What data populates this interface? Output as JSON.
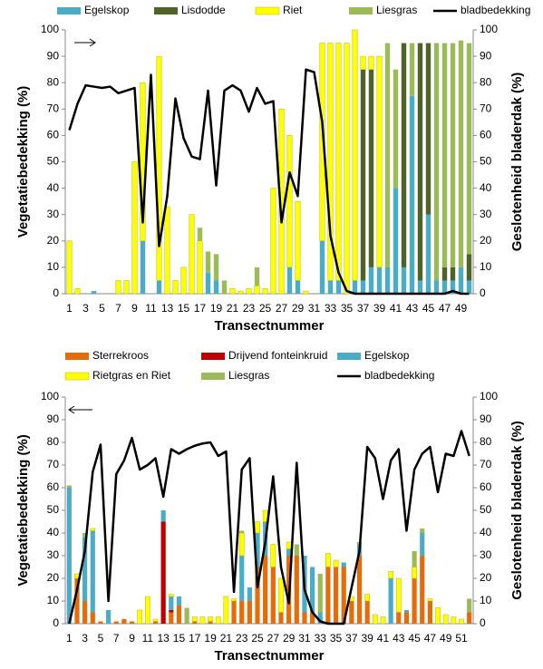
{
  "chart_data": [
    {
      "type": "bar",
      "stacked": true,
      "y_label": "Vegetatiebedekking  (%)",
      "y2_label": "Geslotenheid bladerdak (%)",
      "x_label": "Transectnummer",
      "categories": [
        1,
        null,
        3,
        null,
        5,
        null,
        7,
        null,
        9,
        null,
        11,
        null,
        13,
        null,
        15,
        null,
        17,
        null,
        19,
        null,
        21,
        null,
        23,
        null,
        25,
        null,
        27,
        null,
        29,
        null,
        31,
        null,
        33,
        null,
        35,
        null,
        37,
        null,
        39,
        null,
        41,
        null,
        43,
        null,
        45,
        null,
        47,
        null,
        49,
        null
      ],
      "ylim": [
        0,
        100
      ],
      "yticks": [
        0,
        10,
        20,
        30,
        40,
        50,
        60,
        70,
        80,
        90,
        100
      ],
      "y2lim": [
        0,
        100
      ],
      "y2ticks": [
        0,
        10,
        20,
        30,
        40,
        50,
        60,
        70,
        80,
        90,
        100
      ],
      "series": [
        {
          "name": "Egelskop",
          "color": "#4bacc6",
          "values": [
            0,
            0,
            0,
            1,
            0,
            0,
            0,
            0,
            0,
            20,
            0,
            5,
            0,
            0,
            0,
            0,
            0,
            8,
            5,
            0,
            0,
            0,
            0,
            0,
            0,
            0,
            0,
            10,
            5,
            0,
            0,
            20,
            5,
            5,
            0,
            5,
            5,
            10,
            10,
            10,
            40,
            10,
            75,
            5,
            30,
            5,
            5,
            5,
            10,
            5
          ]
        },
        {
          "name": "Lisdodde",
          "color": "#4f6228",
          "values": [
            0,
            0,
            0,
            0,
            0,
            0,
            0,
            0,
            0,
            0,
            0,
            0,
            0,
            0,
            0,
            0,
            0,
            0,
            0,
            0,
            0,
            0,
            0,
            0,
            0,
            0,
            0,
            0,
            0,
            0,
            0,
            0,
            0,
            0,
            0,
            0,
            80,
            75,
            0,
            0,
            0,
            85,
            0,
            90,
            65,
            0,
            5,
            5,
            0,
            10
          ]
        },
        {
          "name": "Riet",
          "color": "#ffff00",
          "values": [
            20,
            2,
            0,
            0,
            0,
            0,
            5,
            5,
            50,
            60,
            0,
            85,
            33,
            5,
            10,
            30,
            20,
            0,
            0,
            0,
            2,
            1,
            2,
            3,
            2,
            40,
            70,
            50,
            30,
            1,
            0,
            75,
            90,
            90,
            95,
            95,
            5,
            5,
            80,
            0,
            0,
            0,
            0,
            0,
            0,
            0,
            0,
            0,
            0,
            0
          ]
        },
        {
          "name": "Liesgras",
          "color": "#9bbb59",
          "values": [
            0,
            0,
            0,
            0,
            0,
            0,
            0,
            0,
            0,
            0,
            0,
            0,
            0,
            0,
            0,
            0,
            5,
            8,
            10,
            5,
            0,
            0,
            0,
            7,
            0,
            0,
            0,
            0,
            0,
            0,
            0,
            0,
            0,
            0,
            0,
            0,
            0,
            0,
            0,
            85,
            45,
            0,
            20,
            0,
            0,
            90,
            85,
            85,
            86,
            80
          ]
        },
        {
          "name": "bladbedekking",
          "color": "#000000",
          "type": "line",
          "axis": "y2",
          "values": [
            62,
            72,
            79,
            78.5,
            78,
            78.5,
            76,
            77,
            78,
            27,
            83,
            18,
            37,
            74,
            59,
            52,
            51,
            77,
            41,
            77,
            79,
            77,
            69,
            78,
            72,
            73,
            27,
            46,
            37,
            85,
            84,
            65,
            22,
            8,
            1,
            0,
            0,
            0,
            0,
            0,
            0,
            0,
            0,
            0,
            0,
            0,
            0,
            1,
            0,
            0
          ]
        }
      ]
    },
    {
      "type": "bar",
      "stacked": true,
      "y_label": "Vegetatiebedekking (%)",
      "y2_label": "Geslotenheid bladerdak (%)",
      "x_label": "Transectnummer",
      "categories": [
        1,
        null,
        3,
        null,
        5,
        null,
        7,
        null,
        9,
        null,
        11,
        null,
        13,
        null,
        15,
        null,
        17,
        null,
        19,
        null,
        21,
        null,
        23,
        null,
        25,
        null,
        27,
        null,
        29,
        null,
        31,
        null,
        33,
        null,
        35,
        null,
        37,
        null,
        39,
        null,
        41,
        null,
        43,
        null,
        45,
        null,
        47,
        null,
        49,
        null,
        51,
        null
      ],
      "ylim": [
        0,
        100
      ],
      "yticks": [
        0,
        10,
        20,
        30,
        40,
        50,
        60,
        70,
        80,
        90,
        100
      ],
      "y2lim": [
        0,
        100
      ],
      "y2ticks": [
        0,
        10,
        20,
        30,
        40,
        50,
        60,
        70,
        80,
        90,
        100
      ],
      "series": [
        {
          "name": "Sterrekroos",
          "color": "#e46c0a",
          "values": [
            0,
            20,
            10,
            5,
            1,
            0,
            1,
            2,
            1,
            0,
            0,
            1,
            0,
            5,
            8,
            0,
            1,
            0,
            1,
            0,
            0,
            10,
            10,
            10,
            25,
            30,
            25,
            5,
            30,
            30,
            5,
            5,
            0,
            25,
            25,
            25,
            10,
            30,
            10,
            0,
            0,
            0,
            5,
            5,
            20,
            30,
            10,
            0,
            0,
            0,
            0,
            5
          ]
        },
        {
          "name": "Drijvend fonteinkruid",
          "color": "#c00000",
          "values": [
            0,
            0,
            0,
            0,
            0,
            0,
            0,
            0,
            0,
            0,
            0,
            0,
            45,
            1,
            0,
            0,
            0,
            0,
            0,
            0,
            0,
            0,
            0,
            0,
            0,
            0,
            0,
            0,
            0,
            0,
            0,
            0,
            0,
            0,
            0,
            0,
            0,
            0,
            0,
            0,
            0,
            0,
            0,
            0,
            0,
            0,
            0,
            0,
            0,
            0,
            0,
            0
          ]
        },
        {
          "name": "Egelskop",
          "color": "#4bacc6",
          "values": [
            60,
            0,
            28,
            36,
            0,
            6,
            0,
            0,
            0,
            0,
            0,
            0,
            5,
            6,
            4,
            0,
            0,
            0,
            0,
            0,
            0,
            0,
            20,
            6,
            15,
            15,
            0,
            0,
            3,
            0,
            25,
            20,
            5,
            0,
            0,
            2,
            0,
            5,
            0,
            0,
            0,
            20,
            0,
            1,
            0,
            10,
            0,
            0,
            0,
            0,
            0,
            0
          ]
        },
        {
          "name": "Rietgras en Riet",
          "color": "#ffff00",
          "values": [
            0,
            2,
            0,
            1,
            0,
            0,
            0,
            0,
            0,
            6,
            12,
            1,
            0,
            1,
            0,
            0,
            2,
            3,
            2,
            3,
            12,
            1,
            10,
            0,
            5,
            5,
            10,
            15,
            3,
            0,
            0,
            0,
            0,
            6,
            3,
            0,
            2,
            0,
            3,
            4,
            3,
            3,
            15,
            0,
            5,
            0,
            1,
            7,
            4,
            3,
            2,
            0
          ]
        },
        {
          "name": "Liesgras",
          "color": "#9bbb59",
          "values": [
            1,
            0,
            2,
            0,
            0,
            0,
            0,
            0,
            0,
            0,
            0,
            0,
            0,
            0,
            0,
            7,
            0,
            0,
            0,
            0,
            0,
            0,
            1,
            0,
            0,
            0,
            0,
            0,
            0,
            5,
            0,
            0,
            17,
            0,
            0,
            0,
            0,
            1,
            0,
            0,
            0,
            0,
            0,
            0,
            7,
            2,
            0,
            0,
            0,
            0,
            0,
            6
          ]
        },
        {
          "name": "bladbedekking",
          "color": "#000000",
          "type": "line",
          "axis": "y2",
          "values": [
            0,
            15,
            32,
            67,
            79,
            10,
            66,
            72,
            82,
            68,
            70,
            73,
            56,
            77,
            75,
            77,
            78.5,
            79.5,
            80,
            74,
            76,
            14,
            68,
            73,
            16,
            36,
            65,
            25,
            9,
            71,
            15,
            5,
            1,
            0,
            0,
            0,
            16,
            32,
            78,
            73,
            55,
            72,
            77,
            41,
            68,
            75,
            78,
            58,
            75,
            74,
            85,
            74
          ]
        }
      ]
    }
  ]
}
